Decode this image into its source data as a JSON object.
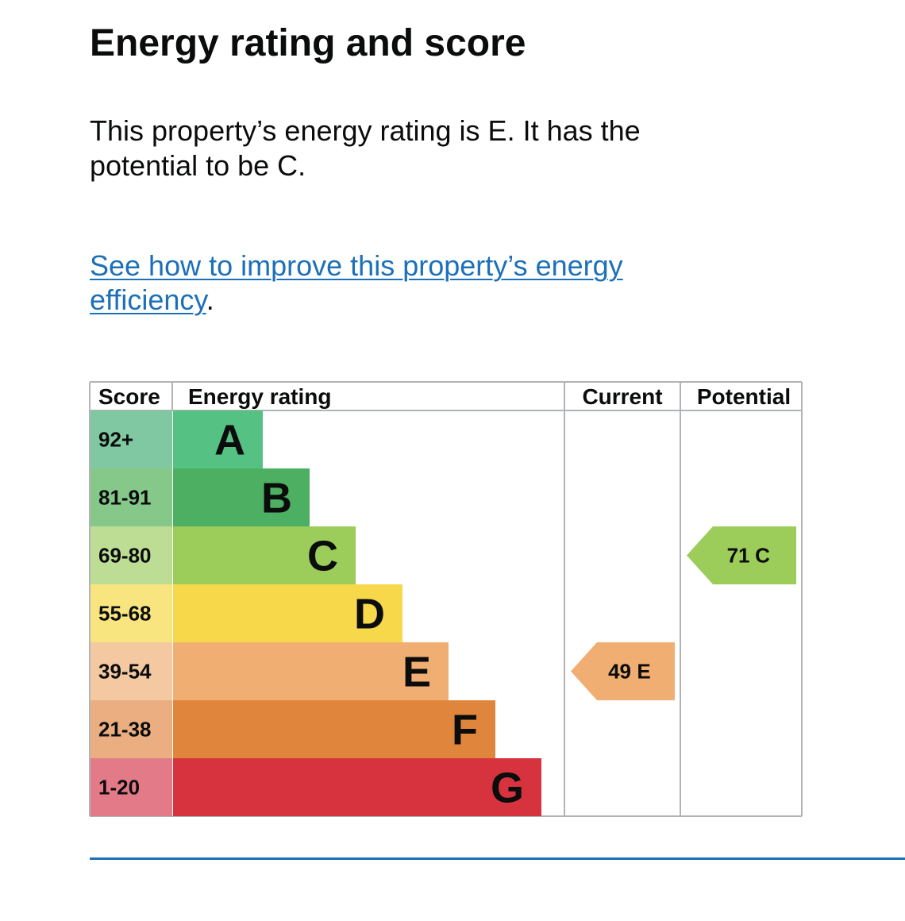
{
  "title": "Energy rating and score",
  "summary": "This property’s energy rating is E. It has the potential to be C.",
  "link": {
    "text": "See how to improve this property’s energy efficiency",
    "suffix": "."
  },
  "table": {
    "headers": {
      "score": "Score",
      "rating": "Energy rating",
      "current": "Current",
      "potential": "Potential"
    },
    "bands": [
      {
        "score": "92+",
        "letter": "A",
        "color": "#55c283",
        "score_bg": "#80c8a2"
      },
      {
        "score": "81-91",
        "letter": "B",
        "color": "#4daf61",
        "score_bg": "#86c78a"
      },
      {
        "score": "69-80",
        "letter": "C",
        "color": "#9ccc5a",
        "score_bg": "#bddd94"
      },
      {
        "score": "55-68",
        "letter": "D",
        "color": "#f7d84a",
        "score_bg": "#f9e57f"
      },
      {
        "score": "39-54",
        "letter": "E",
        "color": "#f0ae72",
        "score_bg": "#f4c9a1"
      },
      {
        "score": "21-38",
        "letter": "F",
        "color": "#e0853c",
        "score_bg": "#eaae80"
      },
      {
        "score": "1-20",
        "letter": "G",
        "color": "#d7333f",
        "score_bg": "#e37a87"
      }
    ],
    "current": {
      "score": "49",
      "letter": "E",
      "band": "E",
      "color": "#f0ae72"
    },
    "potential": {
      "score": "71",
      "letter": "C",
      "band": "C",
      "color": "#9ccc5a"
    }
  },
  "colors": {
    "link": "#1d70b8",
    "border": "#b1b4b6",
    "text": "#0b0c0c"
  }
}
